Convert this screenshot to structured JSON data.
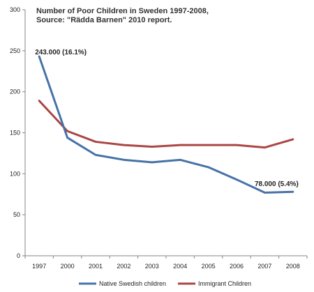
{
  "chart_data": {
    "type": "line",
    "title_lines": [
      "Number of Poor Children in Sweden 1997-2008,",
      "Source: \"Rädda Barnen\" 2010 report."
    ],
    "categories": [
      "1997",
      "2000",
      "2001",
      "2002",
      "2003",
      "2004",
      "2005",
      "2006",
      "2007",
      "2008"
    ],
    "ylim": [
      0,
      300
    ],
    "yticks": [
      "0",
      "50",
      "100",
      "150",
      "200",
      "250",
      "300"
    ],
    "grid": false,
    "legend_position": "bottom",
    "series": [
      {
        "name": "Native Swedish children",
        "color": "#4572a7",
        "values": [
          243,
          144,
          123,
          117,
          114,
          117,
          108,
          93,
          77,
          78
        ]
      },
      {
        "name": "Immigrant Children",
        "color": "#aa4643",
        "values": [
          189,
          152,
          139,
          135,
          133,
          135,
          135,
          135,
          132,
          142
        ]
      }
    ],
    "annotations": [
      {
        "text": "243.000 (16.1%)",
        "series": 0,
        "index": 0
      },
      {
        "text": "78.000 (5.4%)",
        "series": 0,
        "index": 9
      }
    ]
  }
}
